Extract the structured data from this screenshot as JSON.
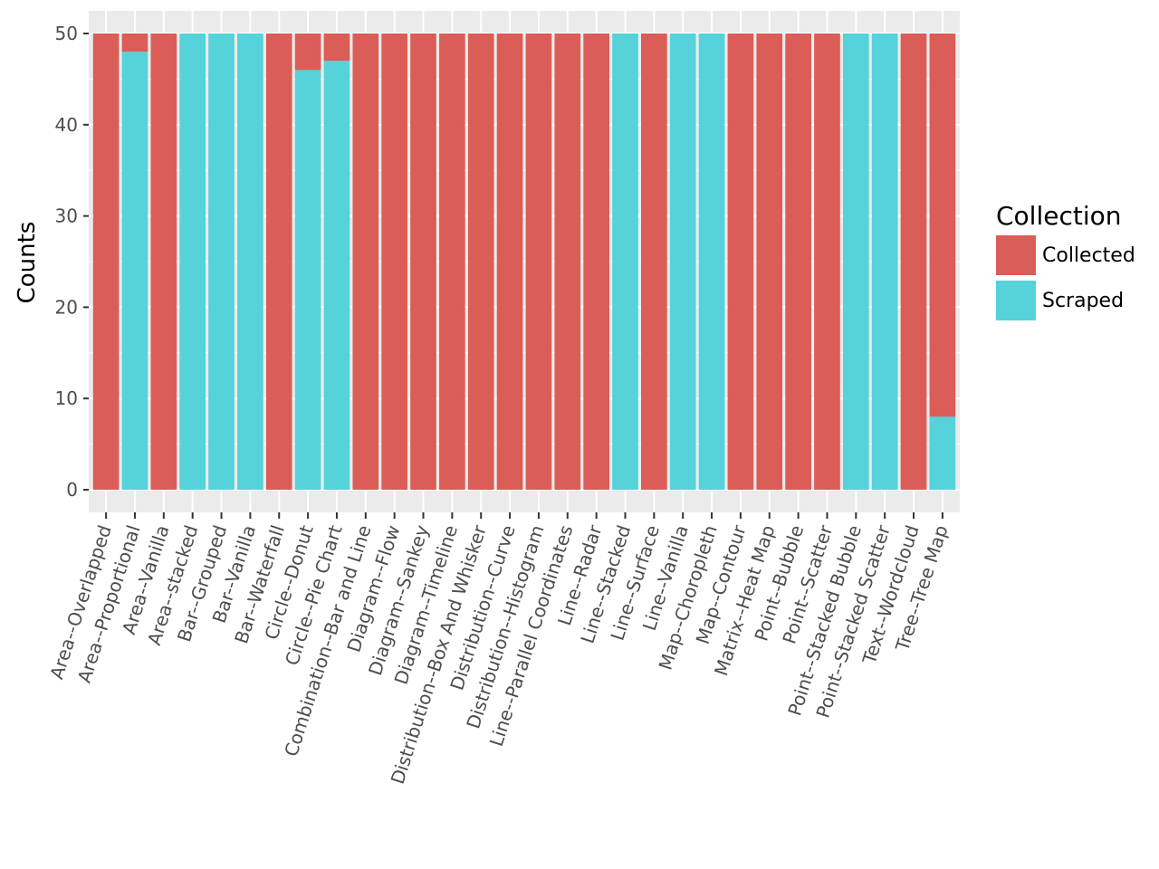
{
  "chart_data": {
    "type": "bar",
    "stacked": true,
    "title": "",
    "xlabel": "",
    "ylabel": "Counts",
    "ylim": [
      0,
      52.5
    ],
    "yticks": [
      0,
      10,
      20,
      30,
      40,
      50
    ],
    "categories": [
      "Area--Overlapped",
      "Area--Proportional",
      "Area--Vanilla",
      "Area--stacked",
      "Bar--Grouped",
      "Bar--Vanilla",
      "Bar--Waterfall",
      "Circle--Donut",
      "Circle--Pie Chart",
      "Combination--Bar and Line",
      "Diagram--Flow",
      "Diagram--Sankey",
      "Diagram--Timeline",
      "Distribution--Box And Whisker",
      "Distribution--Curve",
      "Distribution--Histogram",
      "Line--Parallel Coordinates",
      "Line--Radar",
      "Line--Stacked",
      "Line--Surface",
      "Line--Vanilla",
      "Map--Choropleth",
      "Map--Contour",
      "Matrix--Heat Map",
      "Point--Bubble",
      "Point--Scatter",
      "Point--Stacked Bubble",
      "Point--Stacked Scatter",
      "Text--Wordcloud",
      "Tree--Tree Map"
    ],
    "series": [
      {
        "name": "Scraped",
        "color": "#55d2da",
        "values": [
          0,
          48,
          0,
          50,
          50,
          50,
          0,
          46,
          47,
          0,
          0,
          0,
          0,
          0,
          0,
          0,
          0,
          0,
          50,
          0,
          50,
          50,
          0,
          0,
          0,
          0,
          50,
          50,
          0,
          8
        ]
      },
      {
        "name": "Collected",
        "color": "#db5d57",
        "values": [
          50,
          2,
          50,
          0,
          0,
          0,
          50,
          4,
          3,
          50,
          50,
          50,
          50,
          50,
          50,
          50,
          50,
          50,
          0,
          50,
          0,
          0,
          50,
          50,
          50,
          50,
          0,
          0,
          50,
          42
        ]
      }
    ],
    "legend": {
      "title": "Collection",
      "position": "right",
      "entries": [
        {
          "label": "Collected",
          "color": "#db5d57"
        },
        {
          "label": "Scraped",
          "color": "#55d2da"
        }
      ]
    },
    "grid": true,
    "panel_background": "#ebebeb"
  }
}
